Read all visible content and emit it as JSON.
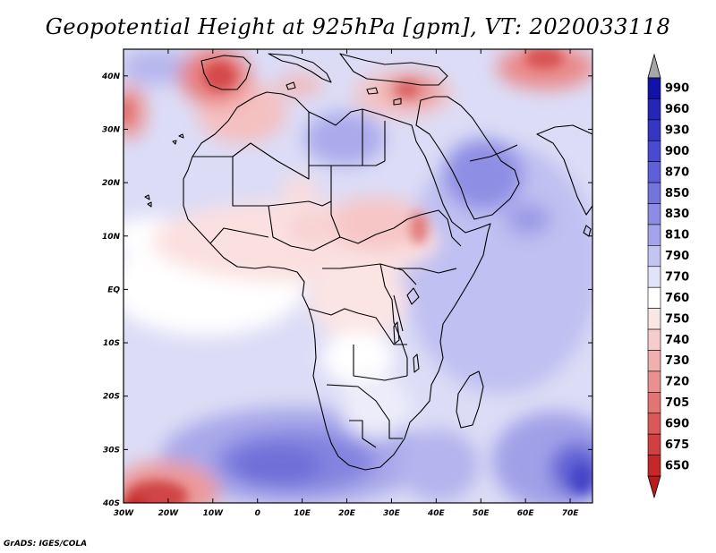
{
  "title": "Geopotential Height at 925hPa [gpm], VT: 2020033118",
  "credit": "GrADS: IGES/COLA",
  "map": {
    "region": "Africa",
    "lon_range": [
      -30,
      75
    ],
    "lat_range": [
      -40,
      45
    ],
    "lon_ticks": [
      {
        "value": -30,
        "label": "30W"
      },
      {
        "value": -20,
        "label": "20W"
      },
      {
        "value": -10,
        "label": "10W"
      },
      {
        "value": 0,
        "label": "0"
      },
      {
        "value": 10,
        "label": "10E"
      },
      {
        "value": 20,
        "label": "20E"
      },
      {
        "value": 30,
        "label": "30E"
      },
      {
        "value": 40,
        "label": "40E"
      },
      {
        "value": 50,
        "label": "50E"
      },
      {
        "value": 60,
        "label": "60E"
      },
      {
        "value": 70,
        "label": "70E"
      }
    ],
    "lat_ticks": [
      {
        "value": 40,
        "label": "40N"
      },
      {
        "value": 30,
        "label": "30N"
      },
      {
        "value": 20,
        "label": "20N"
      },
      {
        "value": 10,
        "label": "10N"
      },
      {
        "value": 0,
        "label": "EQ"
      },
      {
        "value": -10,
        "label": "10S"
      },
      {
        "value": -20,
        "label": "20S"
      },
      {
        "value": -30,
        "label": "30S"
      },
      {
        "value": -40,
        "label": "40S"
      }
    ]
  },
  "colorbar": {
    "levels": [
      {
        "label": "990",
        "color": "#1212a8"
      },
      {
        "label": "960",
        "color": "#2525b8"
      },
      {
        "label": "930",
        "color": "#3636c2"
      },
      {
        "label": "900",
        "color": "#4a4ad0"
      },
      {
        "label": "870",
        "color": "#5f5fd8"
      },
      {
        "label": "850",
        "color": "#7474dd"
      },
      {
        "label": "830",
        "color": "#8c8ce4"
      },
      {
        "label": "810",
        "color": "#a4a4ea"
      },
      {
        "label": "790",
        "color": "#c4c4f2"
      },
      {
        "label": "770",
        "color": "#e2e2f8"
      },
      {
        "label": "760",
        "color": "#ffffff"
      },
      {
        "label": "750",
        "color": "#fbe6e6"
      },
      {
        "label": "740",
        "color": "#f6cccc"
      },
      {
        "label": "730",
        "color": "#f0b0b0"
      },
      {
        "label": "720",
        "color": "#e99090"
      },
      {
        "label": "705",
        "color": "#e27474"
      },
      {
        "label": "690",
        "color": "#d95858"
      },
      {
        "label": "675",
        "color": "#d04040"
      },
      {
        "label": "650",
        "color": "#c42828"
      }
    ],
    "top_arrow_color": "#a6a6a6",
    "bottom_arrow_color": "#b81c1c"
  }
}
